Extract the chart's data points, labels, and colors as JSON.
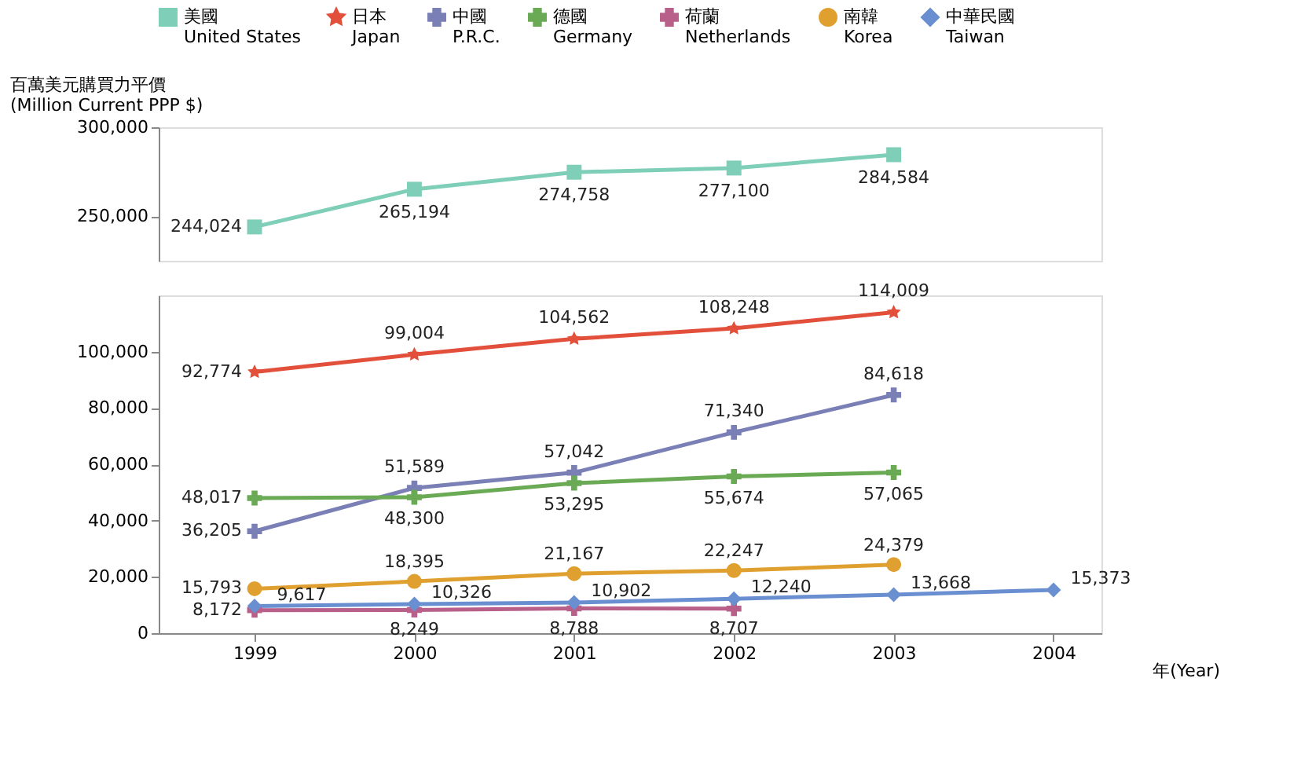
{
  "chart_data": [
    {
      "type": "line",
      "ylabel": "百萬美元購買力平價\n(Million Current PPP $)",
      "x": [
        1999,
        2000,
        2001,
        2002,
        2003
      ],
      "xlim": [
        1998.4,
        2004.3
      ],
      "xticks": [
        1999,
        2000,
        2001,
        2002,
        2003,
        2004
      ],
      "ylim": [
        225000,
        300000
      ],
      "yticks": [
        {
          "value": 250000,
          "label": "250,000"
        },
        {
          "value": 300000,
          "label": "300,000"
        }
      ],
      "tick_labels": "y",
      "legend": "top",
      "grid": false,
      "series": [
        {
          "name": "美國\nUnited States",
          "color": "#7fcfb8",
          "marker": "square",
          "values": [
            244024,
            265194,
            274758,
            277100,
            284584
          ],
          "value_labels": [
            "244,024",
            "265,194",
            "274,758",
            "277,100",
            "284,584"
          ]
        }
      ]
    },
    {
      "type": "line",
      "xlabel": "年(Year)",
      "x": [
        1999,
        2000,
        2001,
        2002,
        2003
      ],
      "xlim": [
        1998.4,
        2004.3
      ],
      "xticks": [
        1999,
        2000,
        2001,
        2002,
        2003,
        2004
      ],
      "ylim": [
        0,
        120000
      ],
      "yticks": [
        0,
        {
          "value": 20000,
          "label": "20,000"
        },
        {
          "value": 40000,
          "label": "40,000"
        },
        {
          "value": 60000,
          "label": "60,000"
        },
        {
          "value": 80000,
          "label": "80,000"
        },
        {
          "value": 100000,
          "label": "100,000"
        }
      ],
      "legend": "top",
      "grid": false,
      "series": [
        {
          "name": "日本\nJapan",
          "color": "#e2503c",
          "marker": "star",
          "values": [
            92774,
            99004,
            104562,
            108248,
            114009
          ],
          "value_labels": [
            "92,774",
            "99,004",
            "104,562",
            "108,248",
            "114,009"
          ]
        },
        {
          "name": "中國\nP.R.C.",
          "color": "#7a7fb5",
          "marker": "cross",
          "values": [
            36205,
            51589,
            57042,
            71340,
            84618
          ],
          "value_labels": [
            "36,205",
            "51,589",
            "57,042",
            "71,340",
            "84,618"
          ]
        },
        {
          "name": "德國\nGermany",
          "color": "#6aaa55",
          "marker": "cross",
          "values": [
            48017,
            48300,
            53295,
            55674,
            57065
          ],
          "value_labels": [
            "48,017",
            "48,300",
            "53,295",
            "55,674",
            "57,065"
          ]
        },
        {
          "name": "荷蘭\nNetherlands",
          "color": "#b8608a",
          "marker": "cross",
          "x": [
            1999,
            2000,
            2001,
            2002
          ],
          "values": [
            8172,
            8249,
            8788,
            8707
          ],
          "value_labels": [
            "8,172",
            "8,249",
            "8,788",
            "8,707"
          ]
        },
        {
          "name": "南韓\nKorea",
          "color": "#e0a030",
          "marker": "circle",
          "values": [
            15793,
            18395,
            21167,
            22247,
            24379
          ],
          "value_labels": [
            "15,793",
            "18,395",
            "21,167",
            "22,247",
            "24,379"
          ]
        },
        {
          "name": "中華民國\nTaiwan",
          "color": "#6a8fd0",
          "marker": "diamond",
          "x": [
            1999,
            2000,
            2001,
            2002,
            2003,
            2004
          ],
          "values": [
            9617,
            10326,
            10902,
            12240,
            13668,
            15373
          ],
          "value_labels": [
            "9,617",
            "10,326",
            "10,902",
            "12,240",
            "13,668",
            "15,373"
          ]
        }
      ]
    }
  ]
}
